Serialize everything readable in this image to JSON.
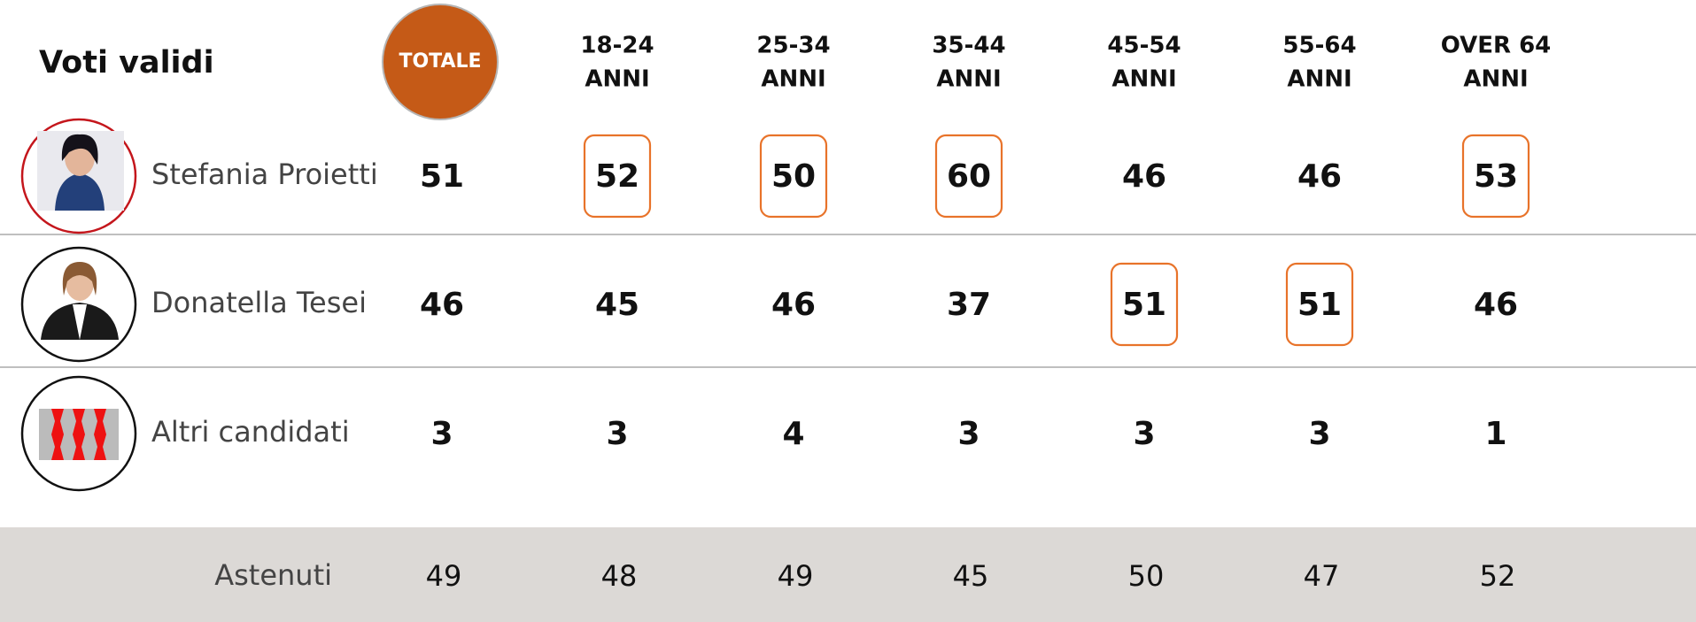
{
  "title": "Voti validi",
  "columns": [
    [
      "TOTALE"
    ],
    [
      "18-24",
      "ANNI"
    ],
    [
      "25-34",
      "ANNI"
    ],
    [
      "35-44",
      "ANNI"
    ],
    [
      "45-54",
      "ANNI"
    ],
    [
      "55-64",
      "ANNI"
    ],
    [
      "OVER 64",
      "ANNI"
    ]
  ],
  "rows": [
    {
      "name": "Stefania Proietti",
      "values": [
        51,
        52,
        50,
        60,
        46,
        46,
        53
      ],
      "highlighted": [
        false,
        true,
        true,
        true,
        false,
        false,
        true
      ]
    },
    {
      "name": "Donatella Tesei",
      "values": [
        46,
        45,
        46,
        37,
        51,
        51,
        46
      ],
      "highlighted": [
        false,
        false,
        false,
        false,
        true,
        true,
        false
      ]
    },
    {
      "name": "Altri candidati",
      "values": [
        3,
        3,
        4,
        3,
        3,
        3,
        1
      ],
      "highlighted": [
        false,
        false,
        false,
        false,
        false,
        false,
        false
      ]
    }
  ],
  "highlight_color": "#e8732a",
  "abstain": {
    "label": "Astenuti",
    "values": [
      49,
      48,
      49,
      45,
      50,
      47,
      52
    ]
  }
}
